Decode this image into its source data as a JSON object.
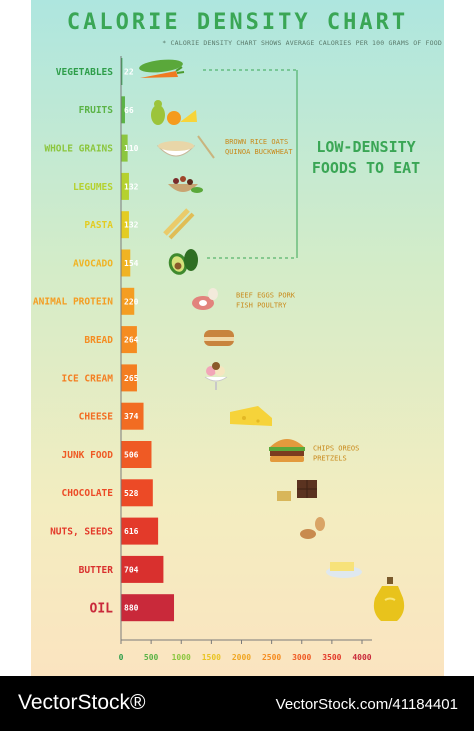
{
  "header": {
    "title": "CALORIE DENSITY CHART",
    "subtitle": "* CALORIE DENSITY CHART SHOWS AVERAGE CALORIES PER 100 GRAMS OF FOOD"
  },
  "callout": {
    "line1": "LOW-DENSITY",
    "line2": "FOODS TO EAT",
    "color": "#3aa655"
  },
  "notes": [
    {
      "category": "WHOLE GRAINS",
      "lines": [
        "BROWN RICE OATS",
        "QUINOA BUCKWHEAT"
      ]
    },
    {
      "category": "ANIMAL PROTEIN",
      "lines": [
        "BEEF EGGS PORK",
        "FISH POULTRY"
      ]
    },
    {
      "category": "JUNK FOOD",
      "lines": [
        "CHIPS OREOS",
        "PRETZELS"
      ]
    }
  ],
  "chart_data": {
    "type": "bar",
    "orientation": "horizontal",
    "title": "CALORIE DENSITY CHART",
    "categories": [
      "VEGETABLES",
      "FRUITS",
      "WHOLE GRAINS",
      "LEGUMES",
      "PASTA",
      "AVOCADO",
      "ANIMAL PROTEIN",
      "BREAD",
      "ICE CREAM",
      "CHEESE",
      "JUNK FOOD",
      "CHOCOLATE",
      "NUTS, SEEDS",
      "BUTTER",
      "OIL"
    ],
    "values": [
      22,
      66,
      110,
      132,
      132,
      154,
      220,
      264,
      265,
      374,
      506,
      528,
      616,
      704,
      880
    ],
    "value_labels": [
      "22",
      "66",
      "110",
      "132",
      "132",
      "154",
      "220",
      "264",
      "265",
      "374",
      "506",
      "528",
      "616",
      "704",
      "880"
    ],
    "colors": [
      "#2e9e4a",
      "#5bb346",
      "#8cc63e",
      "#b5d12f",
      "#e3cc24",
      "#f0b323",
      "#f49d22",
      "#f58c21",
      "#f47e21",
      "#f26c22",
      "#ef5a24",
      "#ec4a26",
      "#e33a2a",
      "#d9302e",
      "#c9293a"
    ],
    "xlim": [
      0,
      4000
    ],
    "x_ticks": [
      "0",
      "500",
      "1000",
      "1500",
      "2000",
      "2500",
      "3000",
      "3500",
      "4000"
    ],
    "tick_colors": [
      "#2e9e4a",
      "#5bb346",
      "#8cc63e",
      "#e9c423",
      "#f0a623",
      "#f58c21",
      "#ef5a24",
      "#e33a2a",
      "#c9293a"
    ],
    "grid": false,
    "legend": "none"
  },
  "footer": {
    "brand": "VectorStock®",
    "reference": "VectorStock.com/41184401"
  },
  "icons": [
    "vegetables-icon",
    "fruits-icon",
    "whole-grains-icon",
    "legumes-icon",
    "pasta-icon",
    "avocado-icon",
    "animal-protein-icon",
    "bread-icon",
    "ice-cream-icon",
    "cheese-icon",
    "junk-food-icon",
    "chocolate-icon",
    "nuts-seeds-icon",
    "butter-icon",
    "oil-icon"
  ]
}
